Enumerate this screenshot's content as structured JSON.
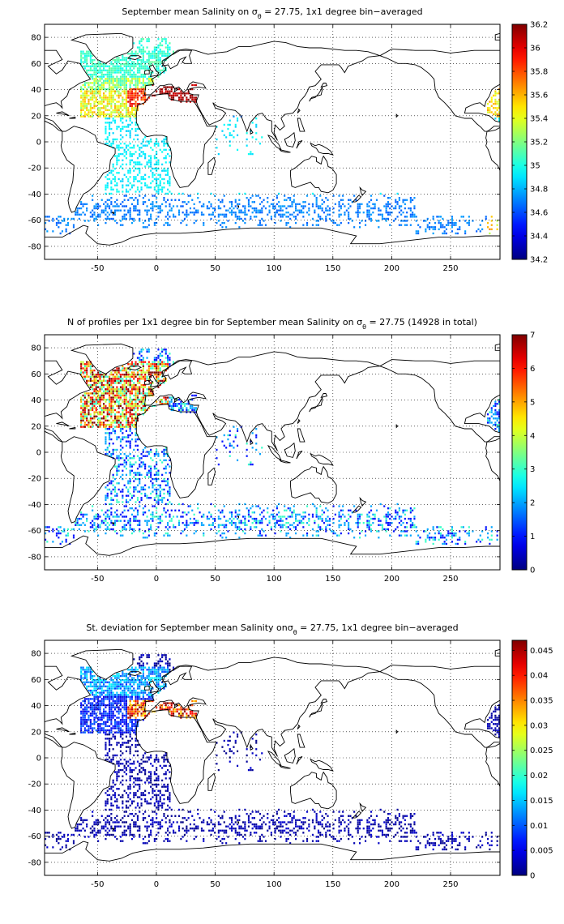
{
  "figure": {
    "panels": [
      {
        "id": "salinity",
        "title_parts": [
          "September ",
          "mean Salinity on ",
          "σ",
          "θ",
          " = 27.75, 1x1 degree bin−averaged"
        ],
        "colorbar": {
          "min": 34.2,
          "max": 36.2,
          "ticks": [
            "34.2",
            "34.4",
            "34.6",
            "34.8",
            "35",
            "35.2",
            "35.4",
            "35.6",
            "35.8",
            "36",
            "36.2"
          ]
        }
      },
      {
        "id": "nprofiles",
        "title_parts": [
          "N of profiles per 1x1 degree bin for September ",
          "mean Salinity on ",
          "σ",
          "θ",
          " = 27.75 (14928 in total)"
        ],
        "colorbar": {
          "min": 0,
          "max": 7,
          "ticks": [
            "0",
            "1",
            "2",
            "3",
            "4",
            "5",
            "6",
            "7"
          ]
        }
      },
      {
        "id": "stdev",
        "title_parts": [
          "St. deviation for September ",
          "mean Salinity on",
          "σ",
          "θ",
          " = 27.75, 1x1 degree bin−averaged"
        ],
        "colorbar": {
          "min": 0,
          "max": 0.047,
          "ticks": [
            "0",
            "0.005",
            "0.01",
            "0.015",
            "0.02",
            "0.025",
            "0.03",
            "0.035",
            "0.04",
            "0.045"
          ]
        }
      }
    ],
    "axes": {
      "xlim": [
        -95,
        292
      ],
      "ylim": [
        -90,
        90
      ],
      "xticks": [
        "-50",
        "0",
        "50",
        "100",
        "150",
        "200",
        "250"
      ],
      "yticks": [
        "80",
        "60",
        "40",
        "20",
        "0",
        "-20",
        "-40",
        "-60",
        "-80"
      ],
      "grid": "dotted"
    },
    "colormap": "jet"
  }
}
